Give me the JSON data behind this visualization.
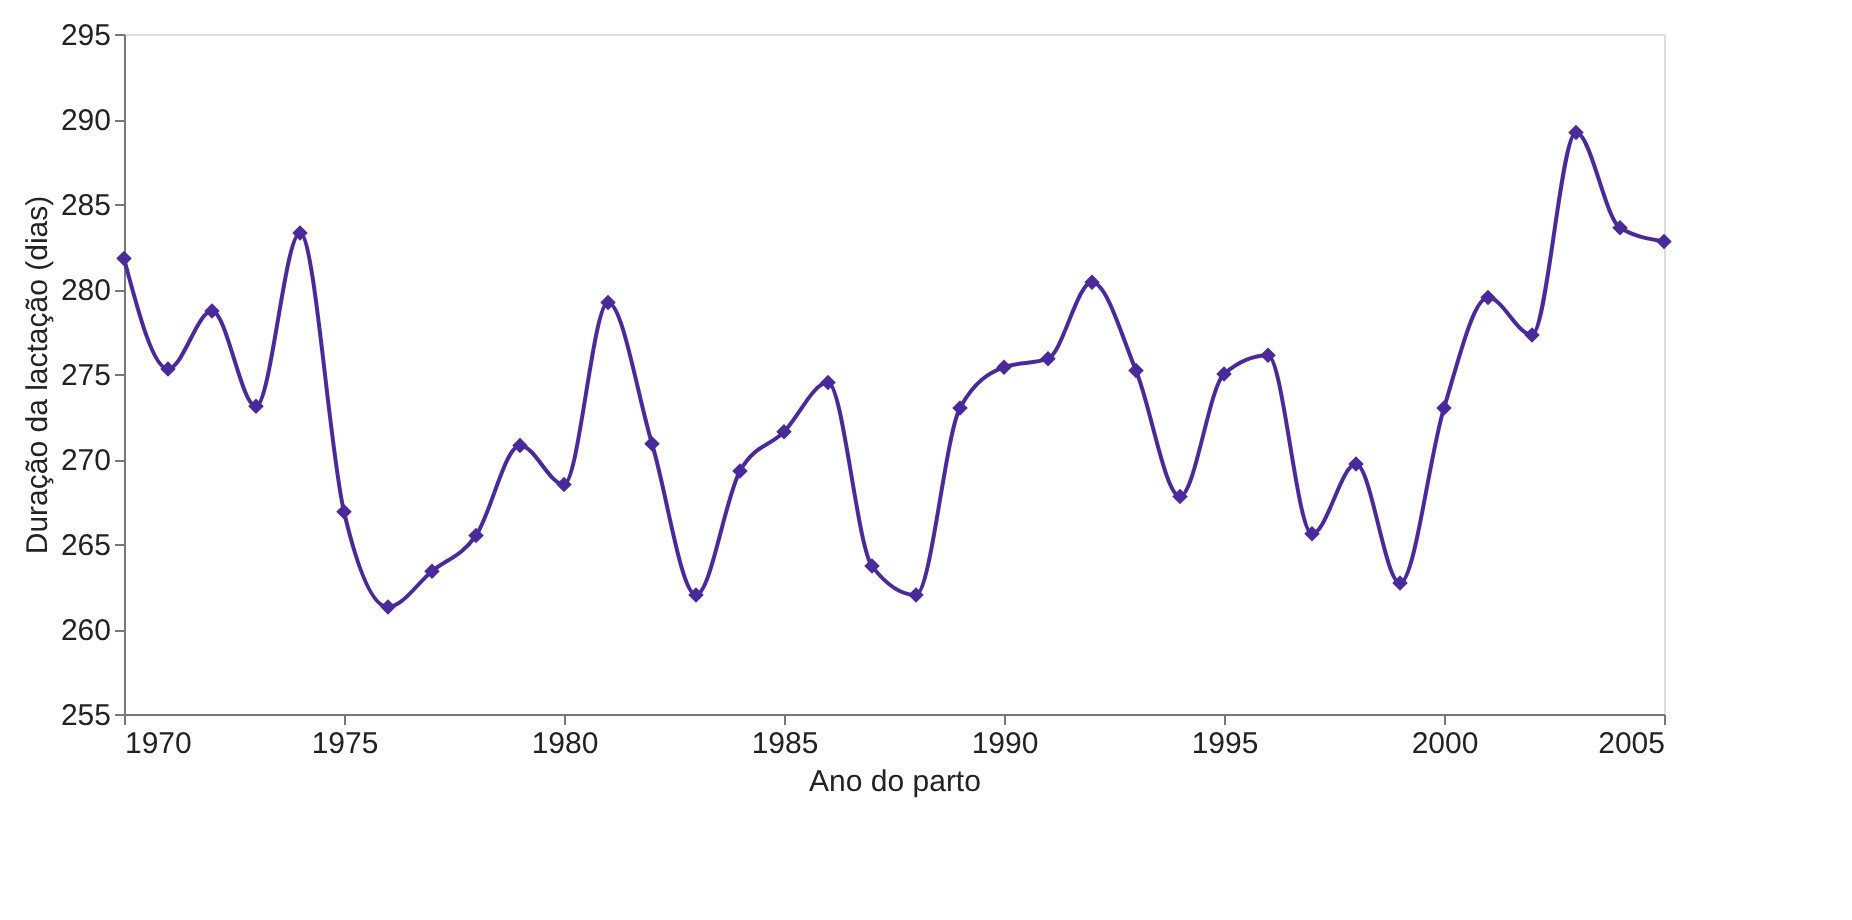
{
  "chart_data": {
    "type": "line",
    "xlabel": "Ano do parto",
    "ylabel": "Duração da lactação (dias)",
    "x": [
      1970,
      1971,
      1972,
      1973,
      1974,
      1975,
      1976,
      1977,
      1978,
      1979,
      1980,
      1981,
      1982,
      1983,
      1984,
      1985,
      1986,
      1987,
      1988,
      1989,
      1990,
      1991,
      1992,
      1993,
      1994,
      1995,
      1996,
      1997,
      1998,
      1999,
      2000,
      2001,
      2002,
      2003,
      2004,
      2005
    ],
    "series": [
      {
        "color": "#4a2a9a",
        "values": [
          281.8,
          275.3,
          278.7,
          273.1,
          283.3,
          266.9,
          261.3,
          263.4,
          265.5,
          270.8,
          268.5,
          279.2,
          270.9,
          262.0,
          269.3,
          271.6,
          274.5,
          263.7,
          262.0,
          273.0,
          275.4,
          275.9,
          280.4,
          275.2,
          267.8,
          275.0,
          276.1,
          265.6,
          269.7,
          262.7,
          273.0,
          279.5,
          277.3,
          289.2,
          283.6,
          282.8
        ]
      }
    ],
    "xlim": [
      1970,
      2005
    ],
    "xticks": [
      1970,
      1975,
      1980,
      1985,
      1990,
      1995,
      2000,
      2005
    ],
    "ylim": [
      255,
      295
    ],
    "yticks": [
      255,
      260,
      265,
      270,
      275,
      280,
      285,
      290,
      295
    ],
    "grid": false,
    "legend": false,
    "marker": "diamond",
    "line_style": "solid"
  }
}
